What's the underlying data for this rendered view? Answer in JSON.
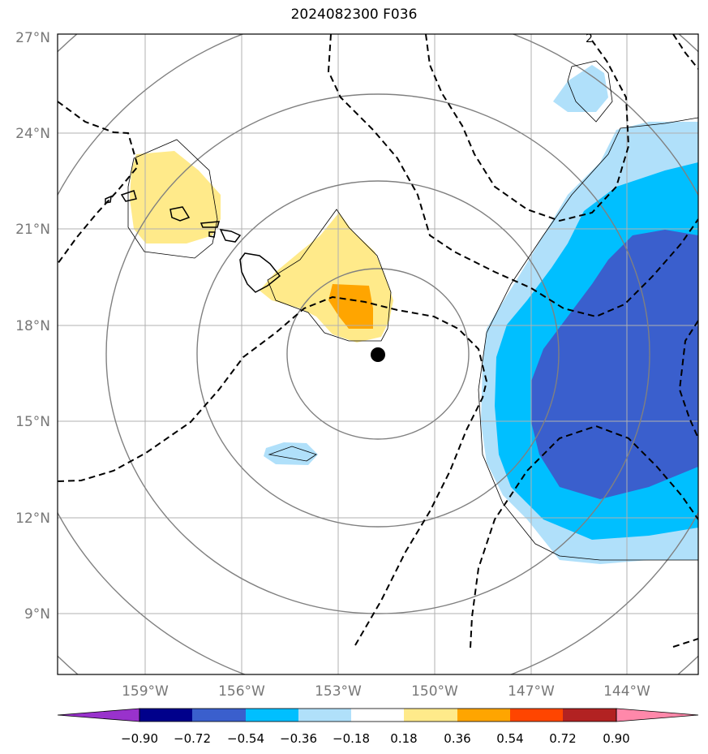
{
  "title": "2024082300 F036",
  "map": {
    "lat_labels": [
      "27°N",
      "24°N",
      "21°N",
      "18°N",
      "15°N",
      "12°N",
      "9°N"
    ],
    "lon_labels": [
      "159°W",
      "156°W",
      "153°W",
      "150°W",
      "147°W",
      "144°W"
    ],
    "storm_center": {
      "lat": 17.1,
      "lon": -151.7
    },
    "colors": {
      "gray_contour": "#808080",
      "dashed_contour": "#000000",
      "gridline": "#b0b0b0",
      "coastline": "#000000"
    },
    "dashed_contour_label": "2"
  },
  "colorbar": {
    "ticks": [
      "−0.90",
      "−0.72",
      "−0.54",
      "−0.36",
      "−0.18",
      "0.18",
      "0.36",
      "0.54",
      "0.72",
      "0.90"
    ],
    "colors": [
      "#9932cc",
      "#00008b",
      "#3a5fcd",
      "#00bfff",
      "#b0e0fa",
      "#ffffff",
      "#ffea8a",
      "#ffa500",
      "#ff4500",
      "#b22222",
      "#ff88aa"
    ]
  }
}
